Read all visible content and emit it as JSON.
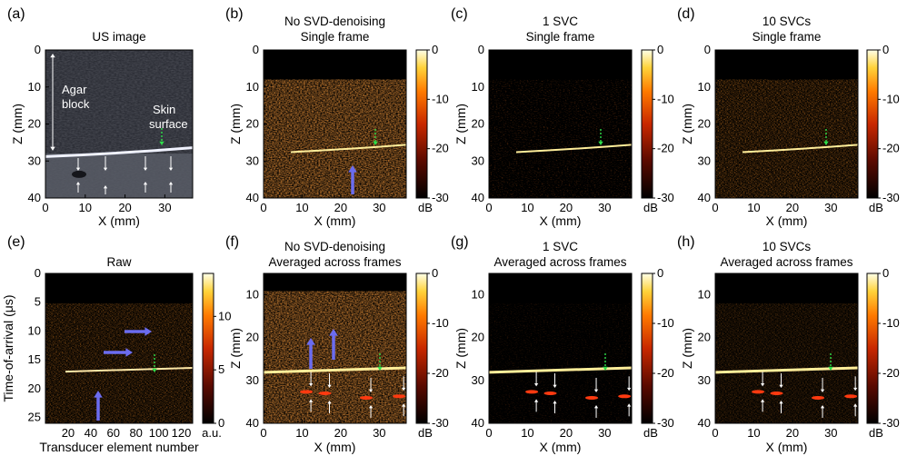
{
  "figure": {
    "panels": [
      {
        "id": "a",
        "label": "(a)",
        "title": [
          "US image"
        ],
        "kind": "us",
        "xlabel": "X (mm)",
        "ylabel": "Z (mm)",
        "xticks": [
          "0",
          "10",
          "20",
          "30"
        ],
        "yticks": [
          "0",
          "10",
          "20",
          "30",
          "40"
        ],
        "annotations": [
          "Agar",
          "block",
          "Skin",
          "surface"
        ],
        "colorbar": null
      },
      {
        "id": "b",
        "label": "(b)",
        "title": [
          "No SVD-denoising",
          "Single frame"
        ],
        "kind": "pa-single-noisy",
        "xlabel": "X (mm)",
        "ylabel": "Z (mm)",
        "xticks": [
          "0",
          "10",
          "20",
          "30"
        ],
        "yticks": [
          "0",
          "10",
          "20",
          "30",
          "40"
        ],
        "colorbar": {
          "ticks": [
            "0",
            "-10",
            "-20",
            "-30"
          ],
          "unit": "dB"
        }
      },
      {
        "id": "c",
        "label": "(c)",
        "title": [
          "1 SVC",
          "Single frame"
        ],
        "kind": "pa-single-clean",
        "xlabel": "X (mm)",
        "ylabel": "Z (mm)",
        "xticks": [
          "0",
          "10",
          "20",
          "30"
        ],
        "yticks": [
          "0",
          "10",
          "20",
          "30",
          "40"
        ],
        "colorbar": {
          "ticks": [
            "0",
            "-10",
            "-20",
            "-30"
          ],
          "unit": "dB"
        }
      },
      {
        "id": "d",
        "label": "(d)",
        "title": [
          "10 SVCs",
          "Single frame"
        ],
        "kind": "pa-single-mid",
        "xlabel": "X (mm)",
        "ylabel": "Z (mm)",
        "xticks": [
          "0",
          "10",
          "20",
          "30"
        ],
        "yticks": [
          "0",
          "10",
          "20",
          "30",
          "40"
        ],
        "colorbar": {
          "ticks": [
            "0",
            "-10",
            "-20",
            "-30"
          ],
          "unit": "dB"
        }
      },
      {
        "id": "e",
        "label": "(e)",
        "title": [
          "Raw"
        ],
        "kind": "raw",
        "xlabel": "Transducer element number",
        "ylabel": "Time-of-arrival (μs)",
        "xticks": [
          "20",
          "40",
          "60",
          "80",
          "100",
          "120"
        ],
        "yticks": [
          "0",
          "5",
          "10",
          "15",
          "20",
          "25"
        ],
        "colorbar": {
          "ticks": [
            "10",
            "5",
            "0"
          ],
          "unit": "a.u."
        }
      },
      {
        "id": "f",
        "label": "(f)",
        "title": [
          "No SVD-denoising",
          "Averaged across frames"
        ],
        "kind": "pa-avg-noisy",
        "xlabel": "X (mm)",
        "ylabel": "Z (mm)",
        "xticks": [
          "0",
          "10",
          "20",
          "30"
        ],
        "yticks": [
          "10",
          "20",
          "30",
          "40"
        ],
        "colorbar": {
          "ticks": [
            "0",
            "-10",
            "-20",
            "-30"
          ],
          "unit": "dB"
        }
      },
      {
        "id": "g",
        "label": "(g)",
        "title": [
          "1 SVC",
          "Averaged across frames"
        ],
        "kind": "pa-avg-clean",
        "xlabel": "X (mm)",
        "ylabel": "Z (mm)",
        "xticks": [
          "0",
          "10",
          "20",
          "30"
        ],
        "yticks": [
          "10",
          "20",
          "30",
          "40"
        ],
        "colorbar": {
          "ticks": [
            "0",
            "-10",
            "-20",
            "-30"
          ],
          "unit": "dB"
        }
      },
      {
        "id": "h",
        "label": "(h)",
        "title": [
          "10 SVCs",
          "Averaged across frames"
        ],
        "kind": "pa-avg-mid",
        "xlabel": "X (mm)",
        "ylabel": "Z (mm)",
        "xticks": [
          "0",
          "10",
          "20",
          "30"
        ],
        "yticks": [
          "10",
          "20",
          "30",
          "40"
        ],
        "colorbar": {
          "ticks": [
            "0",
            "-10",
            "-20",
            "-30"
          ],
          "unit": "dB"
        }
      }
    ],
    "colors": {
      "arrow_artifact": "#6b6cf0",
      "arrow_skin": "#2ee04a",
      "arrow_structure": "#ffffff"
    }
  }
}
